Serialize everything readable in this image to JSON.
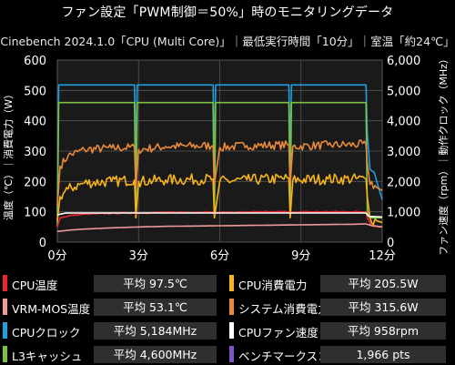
{
  "title": "ファン設定「PWM制御＝50%」時のモニタリングデータ",
  "subtitle": "Cinebench 2024.1.0「CPU (Multi Core)」｜最低実行時間「10分」｜室温「約24℃」",
  "legend": [
    {
      "name": "CPU温度",
      "value": "平均 97.5℃",
      "color": "#e8262b"
    },
    {
      "name": "CPU消費電力",
      "value": "平均 205.5W",
      "color": "#f6b31c"
    },
    {
      "name": "VRM-MOS温度",
      "value": "平均 53.1℃",
      "color": "#ef9a9a"
    },
    {
      "name": "システム消費電力",
      "value": "平均 315.6W",
      "color": "#e98a3a"
    },
    {
      "name": "CPUクロック",
      "value": "平均 5,184MHz",
      "color": "#1ea0e0"
    },
    {
      "name": "CPUファン速度",
      "value": "平均 958rpm",
      "color": "#ffffff"
    },
    {
      "name": "L3キャッシュ",
      "value": "平均 4,600MHz",
      "color": "#7cc242"
    },
    {
      "name": "ベンチマークスコア",
      "value": "1,966 pts",
      "color": "#7d55c7"
    }
  ],
  "chart_data": {
    "type": "line",
    "title": "ファン設定「PWM制御＝50%」時のモニタリングデータ",
    "subtitle": "Cinebench 2024.1.0「CPU (Multi Core)」｜最低実行時間「10分」｜室温「約24℃」",
    "xlabel": "",
    "ylabel_left": "温度（℃）｜消費電力（W）",
    "ylabel_right": "ファン速度（rpm）｜動作クロック（MHz）",
    "xlim": [
      0,
      12
    ],
    "ylim_left": [
      0,
      600
    ],
    "ylim_right": [
      0,
      6000
    ],
    "x_ticks": [
      "0分",
      "3分",
      "6分",
      "9分",
      "12分"
    ],
    "y_ticks_left": [
      "0",
      "100",
      "200",
      "300",
      "400",
      "500",
      "600"
    ],
    "y_ticks_right": [
      "0",
      "1,000",
      "2,000",
      "3,000",
      "4,000",
      "5,000",
      "6,000"
    ],
    "grid": true,
    "run_dip_minutes": [
      0,
      2.9,
      5.8,
      8.6,
      11.45
    ],
    "series": [
      {
        "name": "CPUクロック",
        "axis": "right",
        "color": "#1ea0e0",
        "x": [
          0,
          0.05,
          2.85,
          2.9,
          2.95,
          5.75,
          5.8,
          5.85,
          8.55,
          8.6,
          8.65,
          11.4,
          11.45,
          11.55,
          11.7,
          12
        ],
        "y": [
          1000,
          5180,
          5180,
          2950,
          5180,
          5180,
          2950,
          5180,
          5180,
          2950,
          5180,
          5180,
          3600,
          2400,
          2300,
          1400
        ]
      },
      {
        "name": "L3キャッシュ",
        "axis": "right",
        "color": "#7cc242",
        "x": [
          0,
          0.05,
          2.85,
          2.9,
          2.95,
          5.75,
          5.8,
          5.85,
          8.55,
          8.6,
          8.65,
          11.4,
          11.45,
          11.55,
          12
        ],
        "y": [
          500,
          4600,
          4600,
          900,
          4600,
          4600,
          900,
          4600,
          4600,
          900,
          4600,
          4600,
          1000,
          800,
          800
        ]
      },
      {
        "name": "システム消費電力",
        "axis": "left",
        "color": "#e98a3a",
        "x": [
          0,
          0.1,
          0.4,
          1,
          2,
          2.85,
          2.9,
          3,
          4,
          5.75,
          5.8,
          6,
          7,
          8.55,
          8.6,
          8.7,
          10,
          11.4,
          11.45,
          11.55,
          11.8,
          12
        ],
        "y": [
          120,
          250,
          285,
          305,
          310,
          312,
          180,
          305,
          315,
          318,
          190,
          312,
          318,
          320,
          190,
          315,
          320,
          322,
          260,
          190,
          180,
          170
        ]
      },
      {
        "name": "CPU消費電力",
        "axis": "left",
        "color": "#f6b31c",
        "x": [
          0,
          0.1,
          0.4,
          1,
          2,
          2.85,
          2.9,
          3,
          4,
          5.75,
          5.8,
          6,
          7,
          8.55,
          8.6,
          8.7,
          10,
          11.4,
          11.45,
          11.55,
          11.8,
          12
        ],
        "y": [
          70,
          150,
          175,
          195,
          200,
          205,
          80,
          200,
          205,
          208,
          80,
          200,
          205,
          210,
          80,
          205,
          208,
          208,
          150,
          80,
          70,
          65
        ]
      },
      {
        "name": "CPU温度",
        "axis": "left",
        "color": "#e8262b",
        "x": [
          0,
          0.1,
          0.5,
          1,
          2,
          2.85,
          2.9,
          3,
          4,
          5.75,
          5.8,
          6,
          7,
          8.55,
          8.6,
          8.7,
          10,
          11.4,
          11.45,
          11.6,
          12
        ],
        "y": [
          50,
          80,
          88,
          92,
          95,
          97,
          92,
          96,
          98,
          99,
          94,
          98,
          99,
          100,
          95,
          99,
          100,
          100,
          80,
          55,
          50
        ]
      },
      {
        "name": "VRM-MOS温度",
        "axis": "left",
        "color": "#ef9a9a",
        "x": [
          0,
          0.5,
          1,
          2,
          3,
          4,
          5,
          6,
          7,
          8,
          9,
          10,
          11,
          11.4,
          11.6,
          12
        ],
        "y": [
          35,
          40,
          43,
          47,
          50,
          52,
          53,
          54,
          55,
          56,
          57,
          58,
          59,
          60,
          55,
          50
        ]
      },
      {
        "name": "CPUファン速度",
        "axis": "right",
        "color": "#ffffff",
        "x": [
          0,
          0.3,
          1,
          11.4,
          11.5,
          12
        ],
        "y": [
          900,
          958,
          960,
          960,
          850,
          830
        ]
      }
    ]
  }
}
